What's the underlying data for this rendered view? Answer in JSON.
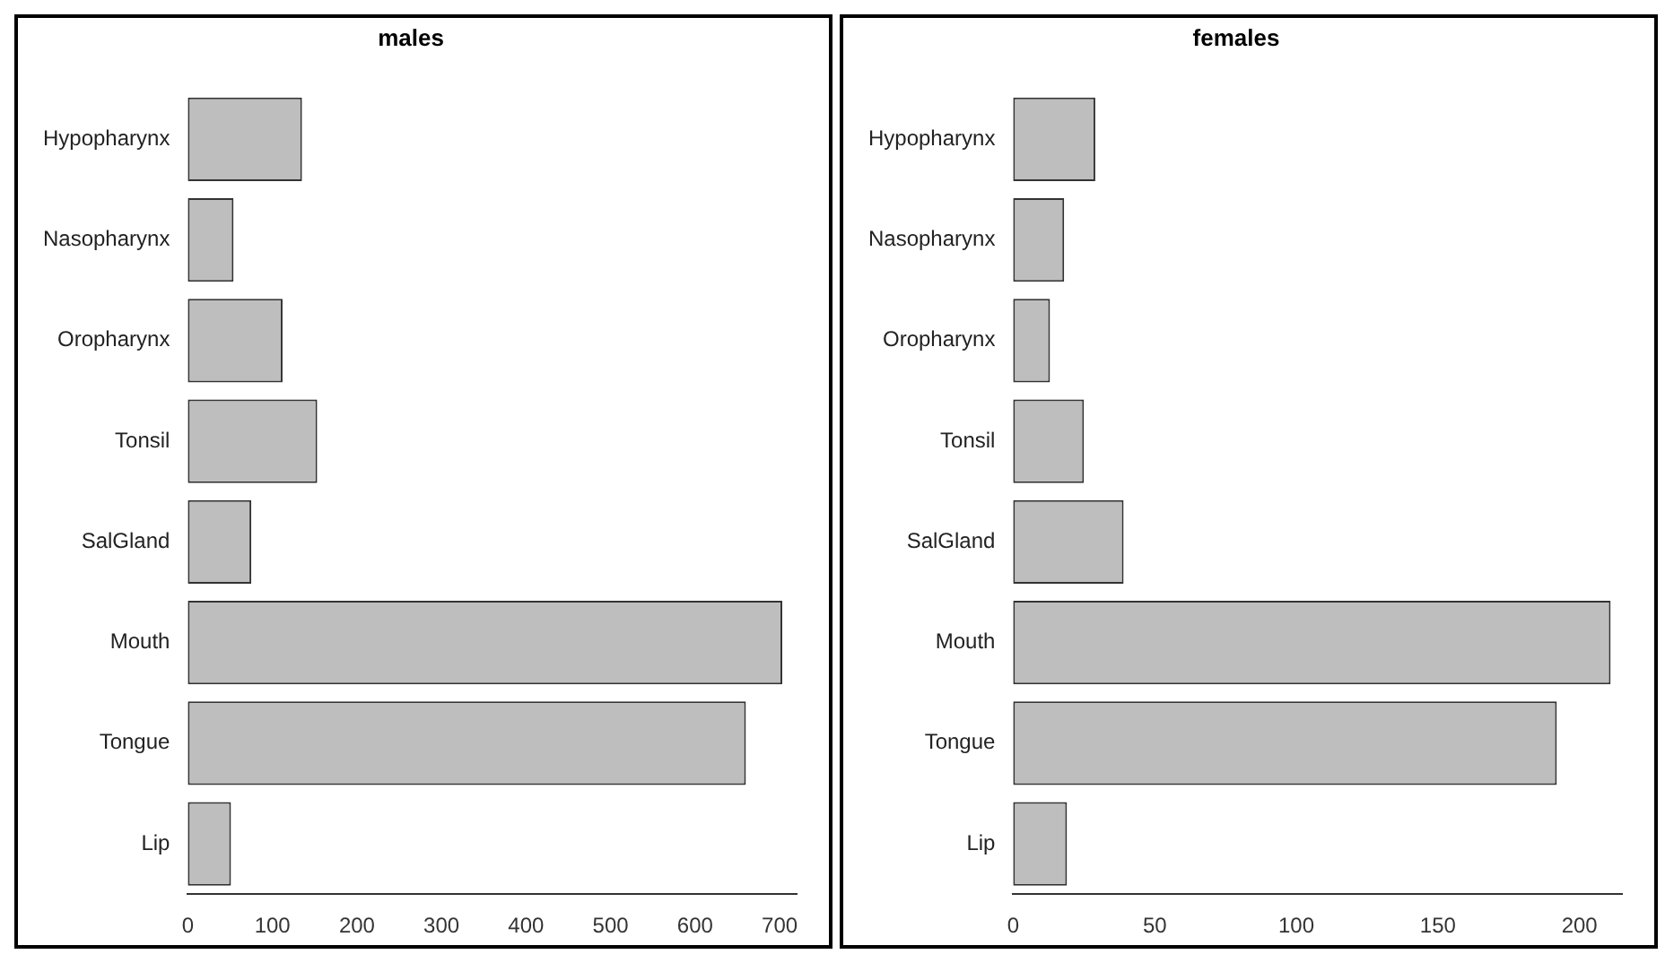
{
  "chart_data": [
    {
      "type": "bar",
      "title": "males",
      "orientation": "horizontal",
      "categories": [
        "Hypopharynx",
        "Nasopharynx",
        "Oropharynx",
        "Tonsil",
        "SalGland",
        "Mouth",
        "Tongue",
        "Lip"
      ],
      "values": [
        135,
        54,
        112,
        153,
        75,
        703,
        660,
        51
      ],
      "color": "#bebebe",
      "xlim": [
        0,
        720
      ],
      "xticks": [
        0,
        100,
        200,
        300,
        400,
        500,
        600,
        700
      ],
      "grid": false,
      "legend": false
    },
    {
      "type": "bar",
      "title": "females",
      "orientation": "horizontal",
      "categories": [
        "Hypopharynx",
        "Nasopharynx",
        "Oropharynx",
        "Tonsil",
        "SalGland",
        "Mouth",
        "Tongue",
        "Lip"
      ],
      "values": [
        29,
        18,
        13,
        25,
        39,
        211,
        192,
        19
      ],
      "color": "#bebebe",
      "xlim": [
        0,
        215
      ],
      "xticks": [
        0,
        50,
        100,
        150,
        200
      ],
      "grid": false,
      "legend": false
    }
  ]
}
